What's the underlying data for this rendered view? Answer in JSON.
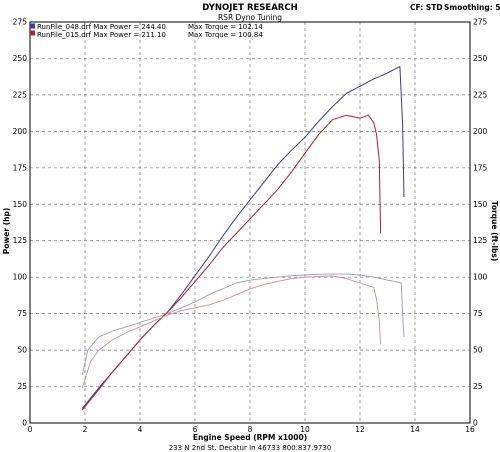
{
  "header": {
    "title": "DYNOJET RESEARCH",
    "subtitle": "RSR Dyno Tuning",
    "cf": "CF: STD",
    "smoothing": "Smoothing: 5"
  },
  "footer": {
    "address": "233 N 2nd St. Decatur In 46733 800.837.9730"
  },
  "colors": {
    "run048": "#3b3b8f",
    "run048_torque": "#9a9aca",
    "run015": "#b21f2f",
    "run015_torque": "#d58a92",
    "grid": "#777777",
    "frame": "#000000"
  },
  "chart_data": {
    "type": "line",
    "xlabel": "Engine Speed (RPM x1000)",
    "ylabel": "Power (hp)",
    "y2label": "Torque (ft-lbs)",
    "xlim": [
      0,
      16
    ],
    "ylim": [
      0,
      275
    ],
    "y2lim": [
      0,
      275
    ],
    "xticks": [
      "0",
      "2",
      "4",
      "6",
      "8",
      "10",
      "12",
      "14",
      "16"
    ],
    "yticks": [
      "0",
      "25",
      "50",
      "75",
      "100",
      "125",
      "150",
      "175",
      "200",
      "225",
      "250",
      "275"
    ],
    "grid": true,
    "legend": [
      {
        "text": "RunFile_048.drf Max Power = 244.40",
        "torque_text": "Max Torque = 102.14",
        "color": "#3b3b8f"
      },
      {
        "text": "RunFile_015.drf Max Power = 211.10",
        "torque_text": "Max Torque = 100.84",
        "color": "#b21f2f"
      }
    ],
    "series": [
      {
        "kind": "power",
        "legend": 0,
        "color": "#3b3b8f",
        "points": [
          [
            1.9,
            10
          ],
          [
            2.5,
            24
          ],
          [
            3,
            35
          ],
          [
            3.5,
            46
          ],
          [
            4,
            57
          ],
          [
            4.5,
            67
          ],
          [
            5,
            76
          ],
          [
            5.5,
            88
          ],
          [
            6,
            101
          ],
          [
            6.5,
            114
          ],
          [
            7,
            128
          ],
          [
            7.5,
            141
          ],
          [
            8,
            153
          ],
          [
            8.5,
            165
          ],
          [
            9,
            177
          ],
          [
            9.5,
            187
          ],
          [
            10,
            196
          ],
          [
            10.5,
            207
          ],
          [
            11,
            217
          ],
          [
            11.5,
            226
          ],
          [
            12,
            231
          ],
          [
            12.5,
            236
          ],
          [
            13,
            240
          ],
          [
            13.3,
            243
          ],
          [
            13.45,
            244.4
          ],
          [
            13.55,
            205
          ],
          [
            13.6,
            155
          ]
        ]
      },
      {
        "kind": "torque",
        "legend": 0,
        "color": "#9a9aca",
        "points": [
          [
            1.9,
            33
          ],
          [
            2.1,
            50
          ],
          [
            2.5,
            59
          ],
          [
            3,
            63
          ],
          [
            3.5,
            66
          ],
          [
            4,
            69
          ],
          [
            4.5,
            72
          ],
          [
            5,
            75
          ],
          [
            5.5,
            79
          ],
          [
            6,
            83
          ],
          [
            6.5,
            88
          ],
          [
            7,
            92
          ],
          [
            7.5,
            96
          ],
          [
            8,
            98
          ],
          [
            8.5,
            99
          ],
          [
            9,
            100
          ],
          [
            9.5,
            101
          ],
          [
            10,
            101.5
          ],
          [
            10.5,
            102
          ],
          [
            11,
            102.1
          ],
          [
            11.5,
            102.14
          ],
          [
            12,
            101.5
          ],
          [
            12.5,
            100
          ],
          [
            13,
            98
          ],
          [
            13.5,
            96
          ],
          [
            13.55,
            75
          ],
          [
            13.6,
            59
          ]
        ]
      },
      {
        "kind": "power",
        "legend": 1,
        "color": "#b21f2f",
        "points": [
          [
            1.9,
            9
          ],
          [
            2.5,
            23
          ],
          [
            3,
            35
          ],
          [
            3.5,
            46
          ],
          [
            4,
            57
          ],
          [
            4.5,
            67
          ],
          [
            5,
            76
          ],
          [
            5.5,
            86
          ],
          [
            6,
            97
          ],
          [
            6.5,
            108
          ],
          [
            7,
            120
          ],
          [
            7.5,
            130
          ],
          [
            8,
            140
          ],
          [
            8.5,
            150
          ],
          [
            9,
            160
          ],
          [
            9.5,
            172
          ],
          [
            10,
            185
          ],
          [
            10.5,
            198
          ],
          [
            11,
            208
          ],
          [
            11.5,
            211
          ],
          [
            12,
            209
          ],
          [
            12.3,
            211.1
          ],
          [
            12.5,
            206
          ],
          [
            12.6,
            198
          ],
          [
            12.7,
            180
          ],
          [
            12.75,
            130
          ]
        ]
      },
      {
        "kind": "torque",
        "legend": 1,
        "color": "#d58a92",
        "points": [
          [
            1.9,
            24
          ],
          [
            2.2,
            42
          ],
          [
            2.5,
            50
          ],
          [
            3,
            57
          ],
          [
            3.5,
            62
          ],
          [
            4,
            66
          ],
          [
            4.5,
            70
          ],
          [
            5,
            74
          ],
          [
            5.5,
            77
          ],
          [
            6,
            79
          ],
          [
            6.5,
            81
          ],
          [
            7,
            84
          ],
          [
            7.5,
            88
          ],
          [
            8,
            92
          ],
          [
            8.5,
            95
          ],
          [
            9,
            97
          ],
          [
            9.5,
            99
          ],
          [
            10,
            100
          ],
          [
            10.5,
            100.5
          ],
          [
            11,
            100.84
          ],
          [
            11.5,
            99
          ],
          [
            12,
            96
          ],
          [
            12.5,
            93
          ],
          [
            12.6,
            85
          ],
          [
            12.7,
            70
          ],
          [
            12.75,
            54
          ]
        ]
      }
    ]
  }
}
